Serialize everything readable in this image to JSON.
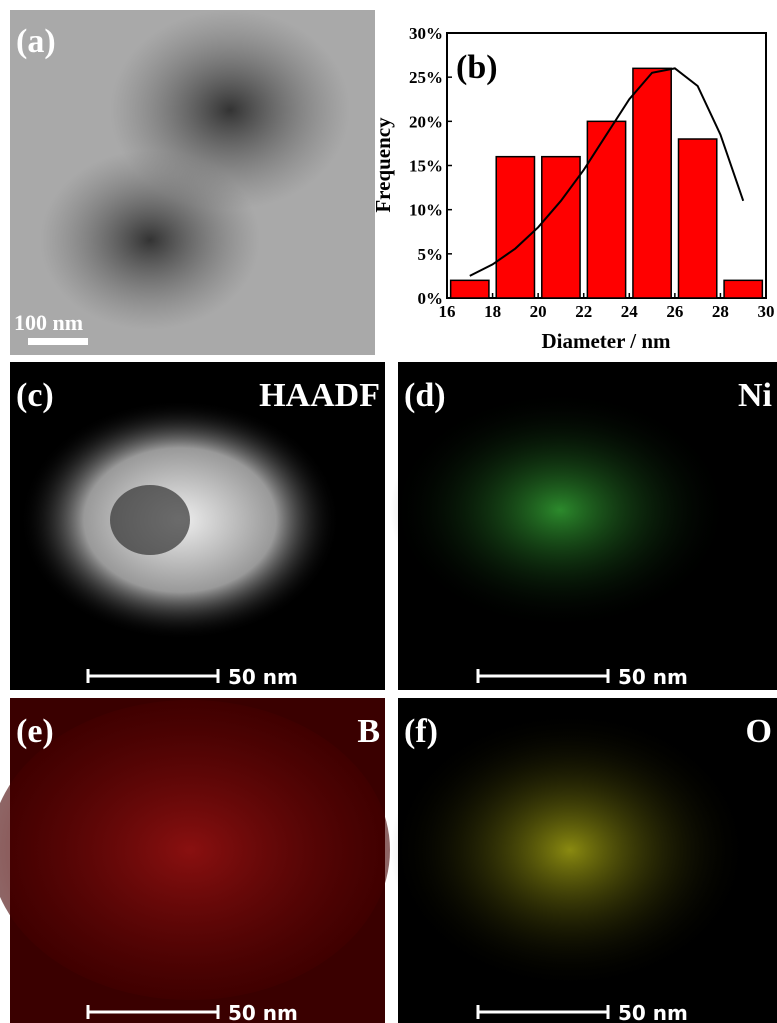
{
  "panels": [
    {
      "label": "(a)",
      "scale_bar": "100 nm"
    },
    {
      "label": "(c)",
      "title": "HAADF",
      "scale_bar": "50 nm"
    },
    {
      "label": "(d)",
      "title": "Ni",
      "scale_bar": "50 nm"
    },
    {
      "label": "(e)",
      "title": "B",
      "scale_bar": "50 nm"
    },
    {
      "label": "(f)",
      "title": "O",
      "scale_bar": "50 nm"
    }
  ],
  "chart_data": {
    "type": "histogram",
    "label": "(b)",
    "xlabel": "Diameter / nm",
    "ylabel": "Frequency",
    "bins": [
      16,
      18,
      20,
      22,
      24,
      26,
      28,
      30
    ],
    "values": [
      2,
      16,
      16,
      20,
      26,
      18,
      2
    ],
    "color": "#ff0000",
    "fit": {
      "x": [
        17,
        18,
        19,
        20,
        21,
        22,
        23,
        24,
        25,
        26,
        27,
        28,
        29
      ],
      "values": [
        2.5,
        3.8,
        5.6,
        8.0,
        11,
        14.5,
        18.5,
        22.5,
        25.5,
        26,
        24,
        18.5,
        11
      ]
    },
    "xlim": [
      16,
      30
    ],
    "xticks": [
      16,
      18,
      20,
      22,
      24,
      26,
      28,
      30
    ],
    "ylim": [
      0,
      30
    ],
    "yticks": [
      {
        "value": 0,
        "label": "0%"
      },
      {
        "value": 5,
        "label": "5%"
      },
      {
        "value": 10,
        "label": "10%"
      },
      {
        "value": 15,
        "label": "15%"
      },
      {
        "value": 20,
        "label": "20%"
      },
      {
        "value": 25,
        "label": "25%"
      },
      {
        "value": 30,
        "label": "30%"
      }
    ]
  }
}
